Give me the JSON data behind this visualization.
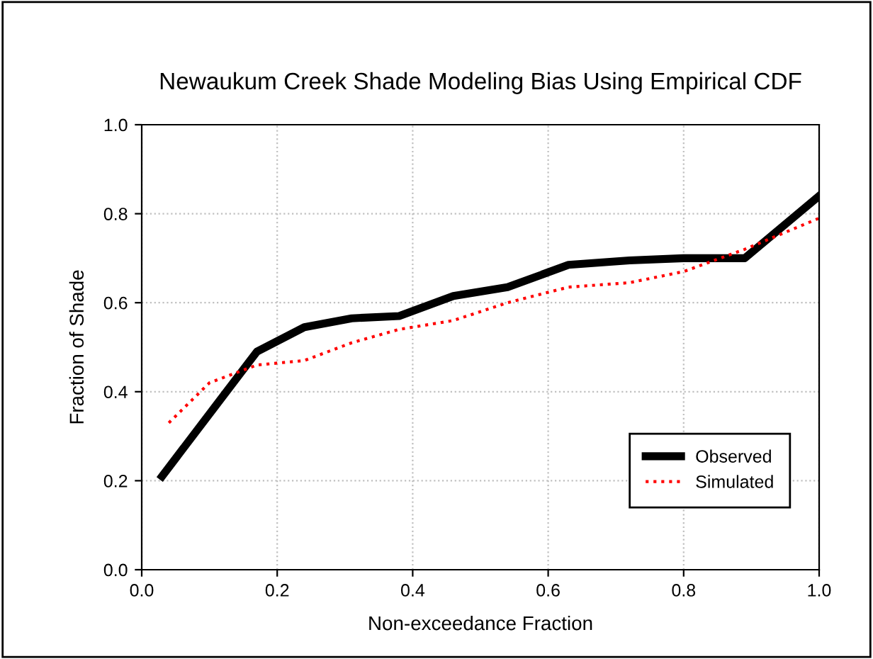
{
  "chart_data": {
    "type": "line",
    "title": "Newaukum Creek Shade Modeling Bias Using Empirical CDF",
    "xlabel": "Non-exceedance Fraction",
    "ylabel": "Fraction of Shade",
    "xlim": [
      0,
      1
    ],
    "ylim": [
      0,
      1
    ],
    "xticks": [
      {
        "value": 0,
        "label": "0.0"
      },
      0.2,
      0.4,
      0.6,
      0.8,
      {
        "value": 1,
        "label": "1.0"
      }
    ],
    "yticks": [
      {
        "value": 0,
        "label": "0.0"
      },
      0.2,
      0.4,
      0.6,
      0.8,
      {
        "value": 1,
        "label": "1.0"
      }
    ],
    "grid": true,
    "legend": "bottom right",
    "series": [
      {
        "name": "Observed",
        "color": "#000000",
        "line_style": "solid",
        "x": [
          0.03,
          0.06,
          0.11,
          0.17,
          0.24,
          0.31,
          0.38,
          0.46,
          0.54,
          0.63,
          0.72,
          0.8,
          0.89,
          1.0
        ],
        "values": [
          0.21,
          0.27,
          0.37,
          0.49,
          0.545,
          0.565,
          0.57,
          0.615,
          0.635,
          0.685,
          0.695,
          0.7,
          0.7,
          0.84
        ]
      },
      {
        "name": "Simulated",
        "color": "#ff0000",
        "line_style": "dotted",
        "x": [
          0.04,
          0.1,
          0.17,
          0.24,
          0.31,
          0.38,
          0.46,
          0.54,
          0.63,
          0.72,
          0.8,
          0.89,
          1.0
        ],
        "values": [
          0.33,
          0.42,
          0.46,
          0.47,
          0.51,
          0.54,
          0.56,
          0.6,
          0.635,
          0.645,
          0.67,
          0.72,
          0.79
        ]
      }
    ]
  }
}
